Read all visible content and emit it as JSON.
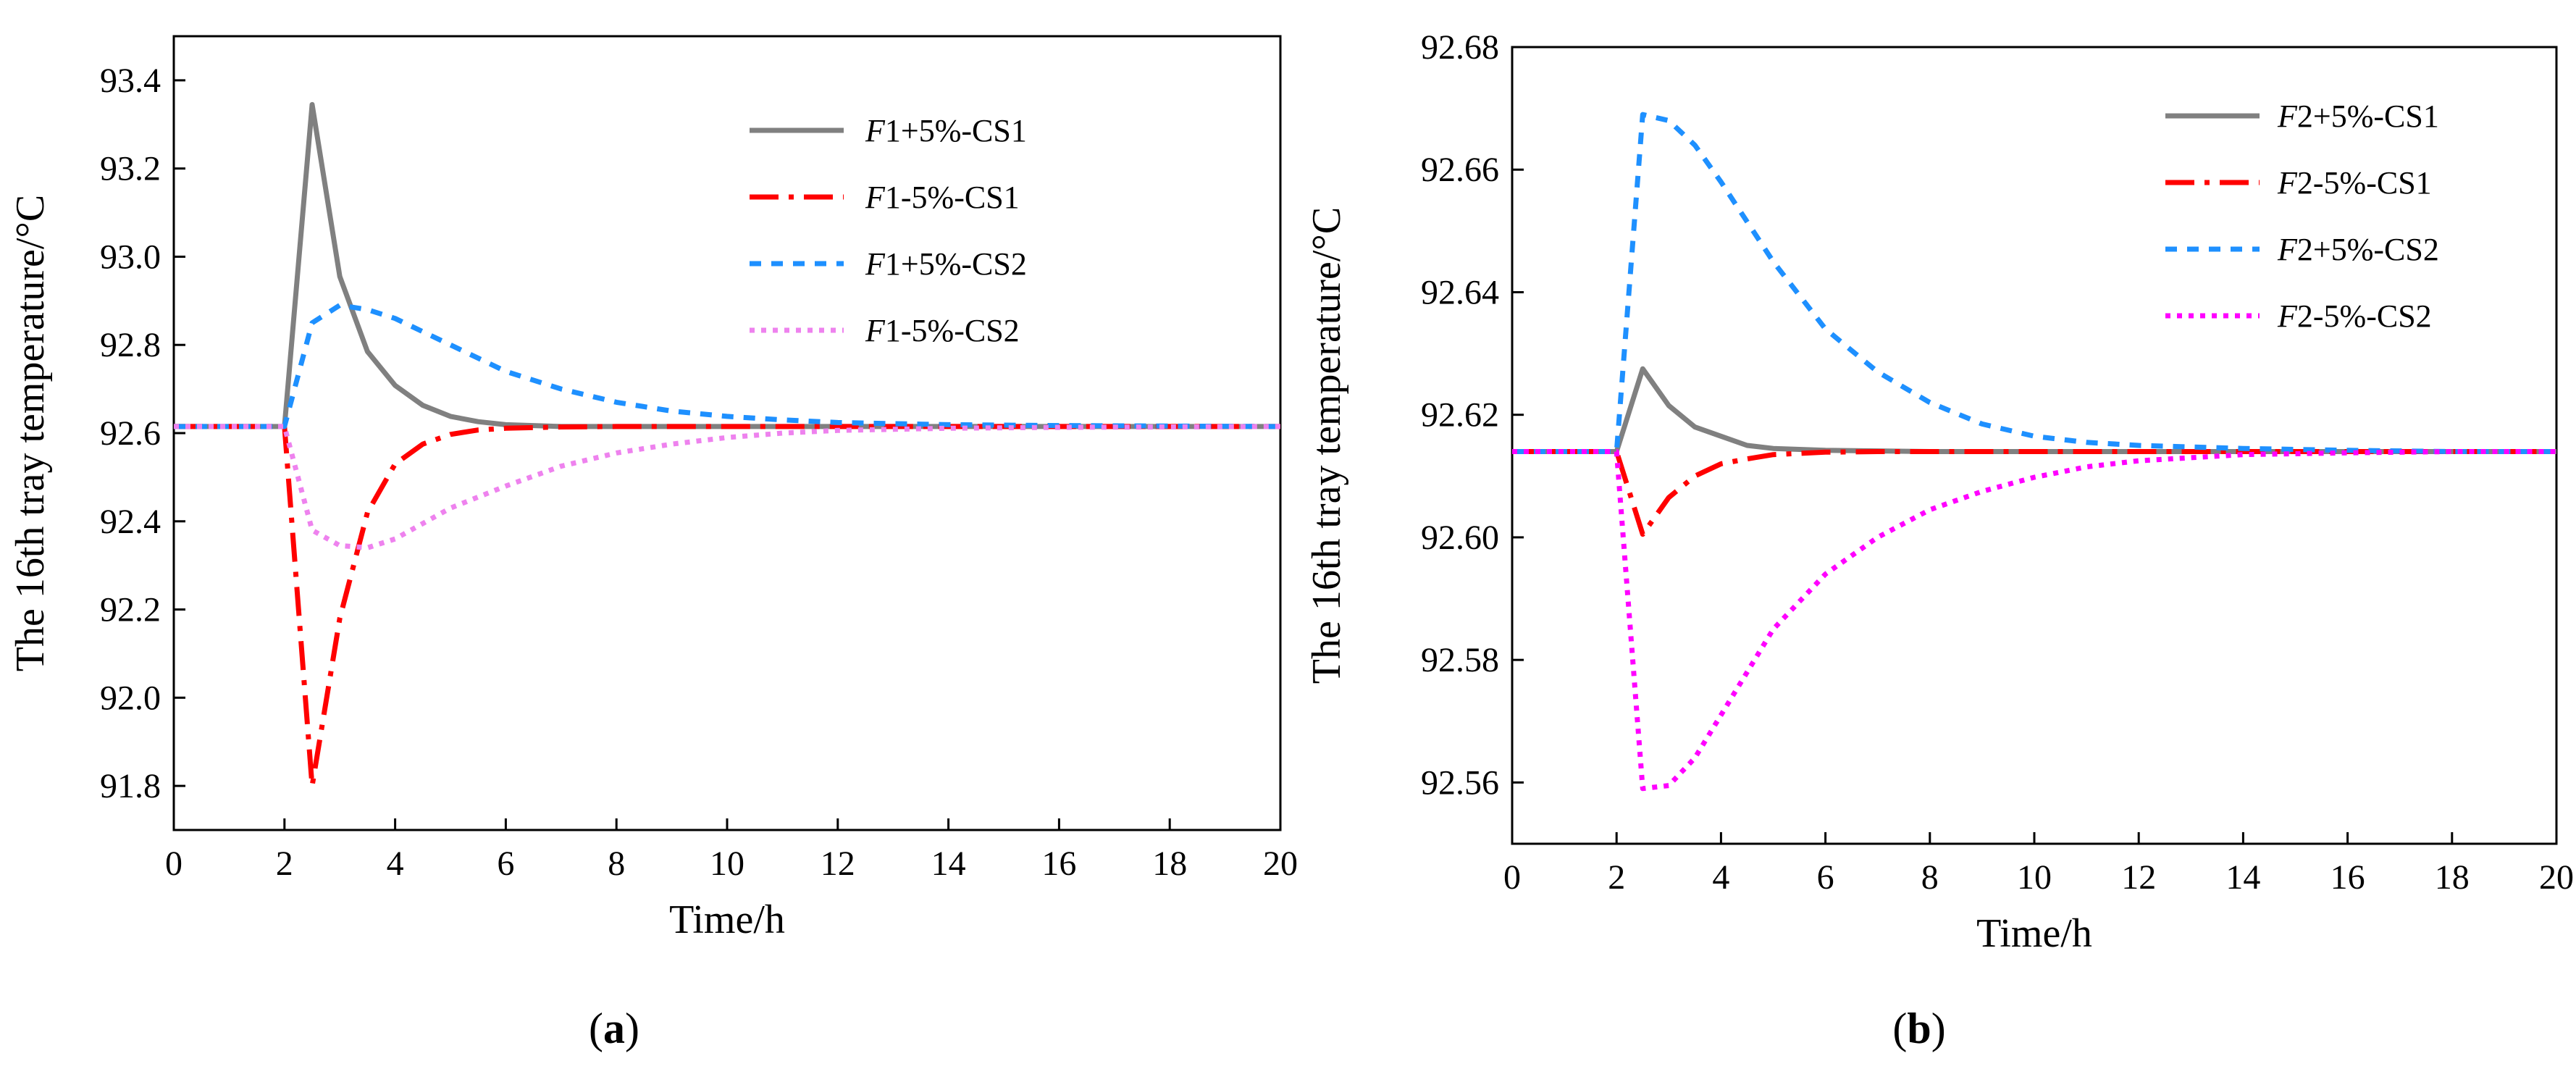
{
  "chart_data": [
    {
      "type": "line",
      "panel_label": "(a)",
      "xlabel": "Time/h",
      "ylabel": "The 16th tray temperature/°C",
      "xlim": [
        0,
        20
      ],
      "ylim": [
        91.7,
        93.5
      ],
      "x_ticks": [
        0,
        2,
        4,
        6,
        8,
        10,
        12,
        14,
        16,
        18,
        20
      ],
      "y_ticks": [
        91.8,
        92.0,
        92.2,
        92.4,
        92.6,
        92.8,
        93.0,
        93.2,
        93.4
      ],
      "y_tick_labels": [
        "91.8",
        "92.0",
        "92.2",
        "92.4",
        "92.6",
        "92.8",
        "93.0",
        "93.2",
        "93.4"
      ],
      "legend_position": "top-right",
      "series": [
        {
          "name_italic": "F",
          "name": "1+5%-CS1",
          "color": "#808080",
          "dash": "solid",
          "x": [
            0,
            2,
            2.5,
            3,
            3.5,
            4,
            4.5,
            5,
            5.5,
            6,
            7,
            8,
            10,
            12,
            14,
            16,
            18,
            20
          ],
          "y": [
            92.615,
            92.615,
            93.345,
            92.955,
            92.785,
            92.708,
            92.663,
            92.638,
            92.626,
            92.619,
            92.615,
            92.615,
            92.615,
            92.615,
            92.615,
            92.615,
            92.615,
            92.615
          ]
        },
        {
          "name_italic": "F",
          "name": "1-5%-CS1",
          "color": "#ff0000",
          "dash": "dashdot",
          "x": [
            0,
            2,
            2.5,
            3,
            3.5,
            4,
            4.5,
            5,
            5.5,
            6,
            7,
            8,
            10,
            12,
            14,
            16,
            18,
            20
          ],
          "y": [
            92.615,
            92.615,
            91.8,
            92.18,
            92.42,
            92.53,
            92.575,
            92.597,
            92.607,
            92.611,
            92.614,
            92.615,
            92.615,
            92.615,
            92.615,
            92.615,
            92.615,
            92.615
          ]
        },
        {
          "name_italic": "F",
          "name": "1+5%-CS2",
          "color": "#1e90ff",
          "dash": "dash",
          "x": [
            0,
            2,
            2.5,
            3,
            3.5,
            4,
            5,
            6,
            7,
            8,
            9,
            10,
            11,
            12,
            14,
            16,
            18,
            20
          ],
          "y": [
            92.615,
            92.615,
            92.85,
            92.89,
            92.88,
            92.86,
            92.8,
            92.74,
            92.7,
            92.67,
            92.65,
            92.638,
            92.63,
            92.624,
            92.619,
            92.617,
            92.616,
            92.615
          ]
        },
        {
          "name_italic": "F",
          "name": "1-5%-CS2",
          "color": "#ee82ee",
          "dash": "dot",
          "x": [
            0,
            2,
            2.5,
            3,
            3.5,
            4,
            5,
            6,
            7,
            8,
            9,
            10,
            11,
            12,
            14,
            16,
            18,
            20
          ],
          "y": [
            92.615,
            92.615,
            92.38,
            92.345,
            92.34,
            92.36,
            92.43,
            92.48,
            92.525,
            92.555,
            92.575,
            92.59,
            92.6,
            92.606,
            92.611,
            92.613,
            92.614,
            92.615
          ]
        }
      ]
    },
    {
      "type": "line",
      "panel_label": "(b)",
      "xlabel": "Time/h",
      "ylabel": "The 16th tray temperature/°C",
      "xlim": [
        0,
        20
      ],
      "ylim": [
        92.55,
        92.68
      ],
      "x_ticks": [
        0,
        2,
        4,
        6,
        8,
        10,
        12,
        14,
        16,
        18,
        20
      ],
      "y_ticks": [
        92.56,
        92.58,
        92.6,
        92.62,
        92.64,
        92.66,
        92.68
      ],
      "y_tick_labels": [
        "92.56",
        "92.58",
        "92.60",
        "92.62",
        "92.64",
        "92.66",
        "92.68"
      ],
      "legend_position": "top-right",
      "series": [
        {
          "name_italic": "F",
          "name": "2+5%-CS1",
          "color": "#808080",
          "dash": "solid",
          "x": [
            0,
            2,
            2.5,
            3,
            3.5,
            4,
            4.5,
            5,
            6,
            7,
            8,
            10,
            12,
            14,
            16,
            18,
            20
          ],
          "y": [
            92.614,
            92.614,
            92.6275,
            92.6215,
            92.618,
            92.6165,
            92.615,
            92.6145,
            92.6142,
            92.6141,
            92.614,
            92.614,
            92.614,
            92.614,
            92.614,
            92.614,
            92.614
          ]
        },
        {
          "name_italic": "F",
          "name": "2-5%-CS1",
          "color": "#ff0000",
          "dash": "dashdot",
          "x": [
            0,
            2,
            2.5,
            3,
            3.5,
            4,
            4.5,
            5,
            6,
            7,
            8,
            10,
            12,
            14,
            16,
            18,
            20
          ],
          "y": [
            92.614,
            92.614,
            92.6005,
            92.6065,
            92.61,
            92.612,
            92.6128,
            92.6135,
            92.6139,
            92.614,
            92.614,
            92.614,
            92.614,
            92.614,
            92.614,
            92.614,
            92.614
          ]
        },
        {
          "name_italic": "F",
          "name": "2+5%-CS2",
          "color": "#1e90ff",
          "dash": "dash",
          "x": [
            0,
            2,
            2.5,
            3,
            3.5,
            4,
            5,
            6,
            7,
            8,
            9,
            10,
            11,
            12,
            14,
            16,
            18,
            20
          ],
          "y": [
            92.614,
            92.614,
            92.669,
            92.668,
            92.664,
            92.658,
            92.645,
            92.634,
            92.627,
            92.622,
            92.6185,
            92.6165,
            92.6155,
            92.615,
            92.6145,
            92.6142,
            92.614,
            92.614
          ]
        },
        {
          "name_italic": "F",
          "name": "2-5%-CS2",
          "color": "#ff00ff",
          "dash": "dot",
          "x": [
            0,
            2,
            2.5,
            3,
            3.5,
            4,
            5,
            6,
            7,
            8,
            9,
            10,
            11,
            12,
            14,
            16,
            18,
            20
          ],
          "y": [
            92.614,
            92.614,
            92.559,
            92.5595,
            92.564,
            92.571,
            92.585,
            92.594,
            92.6,
            92.6045,
            92.6075,
            92.6098,
            92.6115,
            92.6125,
            92.6135,
            92.6138,
            92.614,
            92.614
          ]
        }
      ]
    }
  ]
}
